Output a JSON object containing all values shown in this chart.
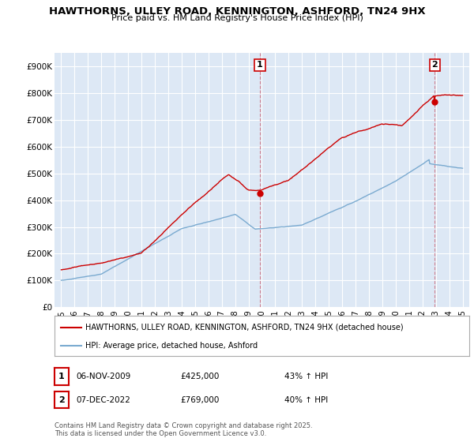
{
  "title": "HAWTHORNS, ULLEY ROAD, KENNINGTON, ASHFORD, TN24 9HX",
  "subtitle": "Price paid vs. HM Land Registry's House Price Index (HPI)",
  "background_color": "#ffffff",
  "plot_bg_color": "#dde8f5",
  "red_line_color": "#cc0000",
  "blue_line_color": "#7aaad0",
  "grid_color": "#ffffff",
  "legend_label_red": "HAWTHORNS, ULLEY ROAD, KENNINGTON, ASHFORD, TN24 9HX (detached house)",
  "legend_label_blue": "HPI: Average price, detached house, Ashford",
  "annotation1_date": "06-NOV-2009",
  "annotation1_price": "£425,000",
  "annotation1_hpi": "43% ↑ HPI",
  "annotation2_date": "07-DEC-2022",
  "annotation2_price": "£769,000",
  "annotation2_hpi": "40% ↑ HPI",
  "footer": "Contains HM Land Registry data © Crown copyright and database right 2025.\nThis data is licensed under the Open Government Licence v3.0.",
  "ylim": [
    0,
    950000
  ],
  "yticks": [
    0,
    100000,
    200000,
    300000,
    400000,
    500000,
    600000,
    700000,
    800000,
    900000
  ],
  "ytick_labels": [
    "£0",
    "£100K",
    "£200K",
    "£300K",
    "£400K",
    "£500K",
    "£600K",
    "£700K",
    "£800K",
    "£900K"
  ],
  "sale1_year": 2009.85,
  "sale1_value": 425000,
  "sale2_year": 2022.92,
  "sale2_value": 769000,
  "xlim": [
    1994.5,
    2025.5
  ]
}
